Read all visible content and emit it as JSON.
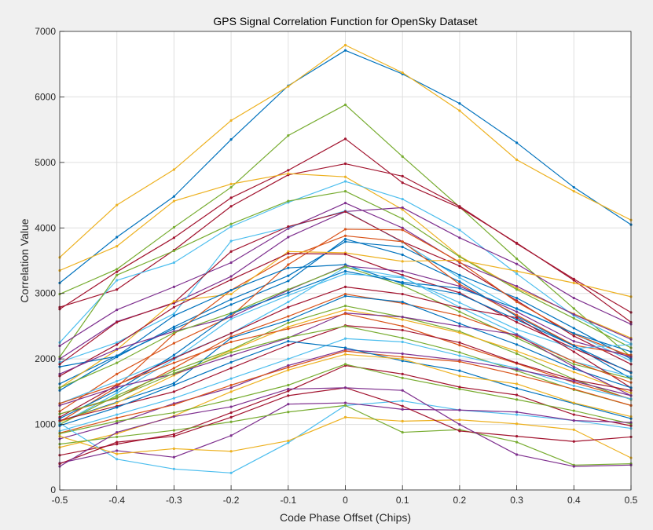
{
  "chart_data": {
    "type": "line",
    "title": "GPS Signal Correlation Function for OpenSky Dataset",
    "xlabel": "Code Phase Offset (Chips)",
    "ylabel": "Correlation Value",
    "xlim": [
      -0.5,
      0.5
    ],
    "ylim": [
      0,
      7000
    ],
    "grid": true,
    "x": [
      -0.5,
      -0.4,
      -0.3,
      -0.2,
      -0.1,
      0,
      0.1,
      0.2,
      0.3,
      0.4,
      0.5
    ],
    "x_tick_labels": [
      "-0.5",
      "-0.4",
      "-0.3",
      "-0.2",
      "-0.1",
      "0",
      "0.1",
      "0.2",
      "0.3",
      "0.4",
      "0.5"
    ],
    "y_ticks": [
      0,
      1000,
      2000,
      3000,
      4000,
      5000,
      6000,
      7000
    ],
    "series": [
      {
        "color": "#0072BD",
        "values": [
          3160,
          3860,
          4480,
          5350,
          6170,
          6710,
          6350,
          5900,
          5300,
          4620,
          4050
        ]
      },
      {
        "color": "#EDB120",
        "values": [
          3550,
          4350,
          4890,
          5640,
          6160,
          6790,
          6370,
          5790,
          5040,
          4560,
          4120
        ]
      },
      {
        "color": "#77AC30",
        "values": [
          2990,
          3370,
          4010,
          4620,
          5410,
          5880,
          5090,
          4320,
          3530,
          2770,
          2030
        ]
      },
      {
        "color": "#A2142F",
        "values": [
          2760,
          3330,
          3850,
          4460,
          4880,
          5360,
          4690,
          4310,
          3770,
          3200,
          2560
        ]
      },
      {
        "color": "#A2142F",
        "values": [
          2790,
          3060,
          3660,
          4330,
          4810,
          4980,
          4790,
          4330,
          3760,
          3220,
          2710
        ]
      },
      {
        "color": "#EDB120",
        "values": [
          3350,
          3720,
          4410,
          4670,
          4830,
          4780,
          4280,
          3570,
          3080,
          2690,
          2320
        ]
      },
      {
        "color": "#4DBEEE",
        "values": [
          2250,
          3200,
          3470,
          4020,
          4390,
          4710,
          4440,
          3970,
          3300,
          2660,
          2230
        ]
      },
      {
        "color": "#77AC30",
        "values": [
          2030,
          3280,
          3650,
          4060,
          4410,
          4560,
          4140,
          3560,
          3060,
          2620,
          2170
        ]
      },
      {
        "color": "#7E2F8E",
        "values": [
          2200,
          2750,
          3100,
          3470,
          3990,
          4380,
          4000,
          3470,
          3110,
          2680,
          2300
        ]
      },
      {
        "color": "#7E2F8E",
        "values": [
          2000,
          2570,
          2850,
          3260,
          3860,
          4250,
          4310,
          3850,
          3450,
          2930,
          2530
        ]
      },
      {
        "color": "#4DBEEE",
        "values": [
          1950,
          2250,
          2690,
          3800,
          4010,
          4260,
          3780,
          3240,
          2760,
          2390,
          1970
        ]
      },
      {
        "color": "#A2142F",
        "values": [
          1920,
          2560,
          2860,
          3640,
          4020,
          4250,
          3790,
          3420,
          2890,
          2350,
          1920
        ]
      },
      {
        "color": "#0072BD",
        "values": [
          1620,
          2050,
          2460,
          2830,
          3190,
          3830,
          3590,
          3180,
          2650,
          2200,
          1700
        ]
      },
      {
        "color": "#0072BD",
        "values": [
          1520,
          2030,
          2490,
          2910,
          3270,
          3790,
          3710,
          3280,
          2930,
          2470,
          2000
        ]
      },
      {
        "color": "#D95319",
        "values": [
          1200,
          1770,
          2240,
          2650,
          3440,
          3980,
          3970,
          3480,
          2870,
          2380,
          2040
        ]
      },
      {
        "color": "#D95319",
        "values": [
          1040,
          1570,
          2380,
          3050,
          3550,
          3880,
          3790,
          3140,
          2670,
          2210,
          2060
        ]
      },
      {
        "color": "#EDB120",
        "values": [
          1560,
          2140,
          2880,
          2990,
          3640,
          3620,
          3490,
          3510,
          3340,
          3160,
          2950
        ]
      },
      {
        "color": "#A2142F",
        "values": [
          1740,
          2220,
          2790,
          3210,
          3610,
          3600,
          3280,
          3010,
          2560,
          2160,
          1800
        ]
      },
      {
        "color": "#0072BD",
        "values": [
          1880,
          2040,
          2660,
          3050,
          3390,
          3440,
          3150,
          2990,
          2600,
          2200,
          1790
        ]
      },
      {
        "color": "#7E2F8E",
        "values": [
          1770,
          2150,
          2420,
          2640,
          3050,
          3420,
          3340,
          3110,
          2720,
          2270,
          2030
        ]
      },
      {
        "color": "#4DBEEE",
        "values": [
          1320,
          1660,
          2020,
          2390,
          2870,
          3400,
          3250,
          2790,
          2380,
          1960,
          1730
        ]
      },
      {
        "color": "#77AC30",
        "values": [
          1560,
          1940,
          2400,
          2700,
          3060,
          3410,
          3120,
          2720,
          2320,
          1920,
          1700
        ]
      },
      {
        "color": "#0072BD",
        "values": [
          1090,
          1520,
          2060,
          2690,
          3010,
          3340,
          3170,
          3080,
          2770,
          2390,
          2110
        ]
      },
      {
        "color": "#4DBEEE",
        "values": [
          1000,
          1480,
          1990,
          2610,
          2970,
          3300,
          3240,
          2860,
          2450,
          2160,
          2220
        ]
      },
      {
        "color": "#A2142F",
        "values": [
          1110,
          1600,
          2010,
          2390,
          2790,
          3100,
          2990,
          2780,
          2630,
          2110,
          1560
        ]
      },
      {
        "color": "#D95319",
        "values": [
          1160,
          1400,
          1860,
          2340,
          2650,
          2990,
          2850,
          2660,
          2350,
          1960,
          1640
        ]
      },
      {
        "color": "#0072BD",
        "values": [
          1050,
          1340,
          1630,
          2320,
          2590,
          2960,
          2870,
          2540,
          2220,
          1850,
          1560
        ]
      },
      {
        "color": "#77AC30",
        "values": [
          1000,
          1440,
          1820,
          2140,
          2550,
          2810,
          2640,
          2420,
          2080,
          1690,
          1380
        ]
      },
      {
        "color": "#EDB120",
        "values": [
          1040,
          1330,
          1750,
          2130,
          2490,
          2750,
          2600,
          2400,
          2120,
          1800,
          1480
        ]
      },
      {
        "color": "#7E2F8E",
        "values": [
          1290,
          1570,
          1770,
          2050,
          2320,
          2700,
          2640,
          2500,
          2370,
          1880,
          1440
        ]
      },
      {
        "color": "#D95319",
        "values": [
          1320,
          1610,
          1940,
          2260,
          2460,
          2690,
          2500,
          2210,
          1930,
          1640,
          1390
        ]
      },
      {
        "color": "#A2142F",
        "values": [
          1060,
          1280,
          1500,
          1860,
          2210,
          2510,
          2440,
          2250,
          1940,
          1680,
          1520
        ]
      },
      {
        "color": "#77AC30",
        "values": [
          1160,
          1410,
          1780,
          2100,
          2330,
          2500,
          2320,
          2100,
          1820,
          1530,
          1290
        ]
      },
      {
        "color": "#4DBEEE",
        "values": [
          900,
          1150,
          1400,
          1700,
          2000,
          2310,
          2260,
          2050,
          1860,
          1590,
          1390
        ]
      },
      {
        "color": "#7E2F8E",
        "values": [
          780,
          1020,
          1320,
          1560,
          1900,
          2140,
          2080,
          1980,
          1840,
          1660,
          1440
        ]
      },
      {
        "color": "#D95319",
        "values": [
          870,
          1100,
          1300,
          1600,
          1870,
          2120,
          2030,
          1960,
          1760,
          1540,
          1290
        ]
      },
      {
        "color": "#0072BD",
        "values": [
          980,
          1260,
          1600,
          1950,
          2270,
          2170,
          1970,
          1820,
          1550,
          1320,
          1090
        ]
      },
      {
        "color": "#EDB120",
        "values": [
          650,
          860,
          1130,
          1500,
          1830,
          2070,
          2000,
          1740,
          1620,
          1330,
          1120
        ]
      },
      {
        "color": "#A2142F",
        "values": [
          530,
          700,
          850,
          1180,
          1510,
          1900,
          1770,
          1570,
          1450,
          1150,
          980
        ]
      },
      {
        "color": "#77AC30",
        "values": [
          860,
          1050,
          1180,
          1380,
          1600,
          1920,
          1710,
          1540,
          1380,
          1210,
          1010
        ]
      },
      {
        "color": "#4DBEEE",
        "values": [
          1020,
          470,
          320,
          260,
          720,
          1290,
          1360,
          1220,
          1150,
          1060,
          940
        ]
      },
      {
        "color": "#7E2F8E",
        "values": [
          410,
          600,
          500,
          830,
          1310,
          1330,
          1230,
          1220,
          1190,
          1060,
          1030
        ]
      },
      {
        "color": "#EDB120",
        "values": [
          820,
          550,
          630,
          590,
          750,
          1110,
          1050,
          1070,
          1010,
          920,
          490
        ]
      },
      {
        "color": "#77AC30",
        "values": [
          700,
          810,
          910,
          1040,
          1190,
          1290,
          880,
          920,
          730,
          380,
          400
        ]
      },
      {
        "color": "#A2142F",
        "values": [
          400,
          730,
          820,
          1110,
          1440,
          1560,
          1280,
          900,
          820,
          740,
          810
        ]
      },
      {
        "color": "#7E2F8E",
        "values": [
          360,
          880,
          1120,
          1270,
          1540,
          1560,
          1520,
          1000,
          540,
          360,
          380
        ]
      }
    ]
  }
}
